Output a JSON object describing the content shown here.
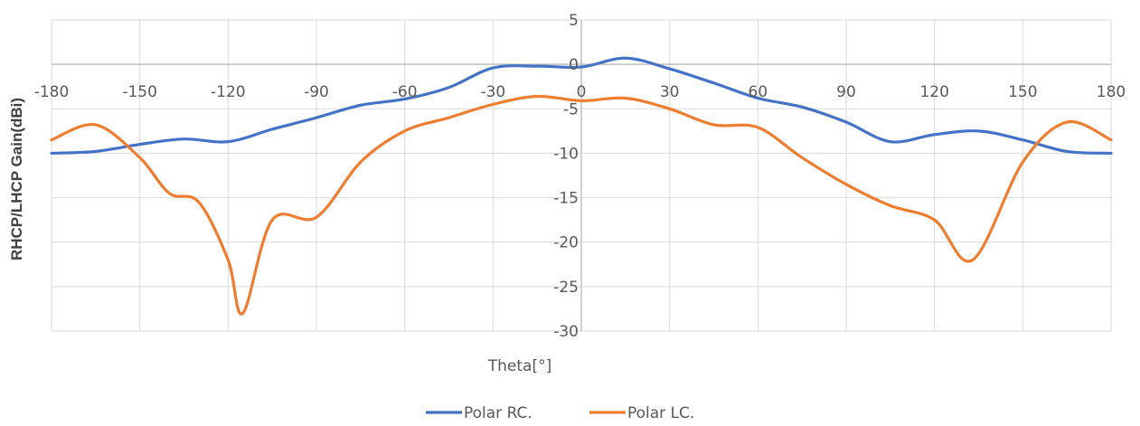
{
  "chart_data": {
    "type": "line",
    "xlabel": "Theta[°]",
    "ylabel": "RHCP/LHCP Gain(dBi)",
    "xlim": [
      -180,
      180
    ],
    "ylim": [
      -30,
      5
    ],
    "x_ticks": [
      -180,
      -150,
      -120,
      -90,
      -60,
      -30,
      0,
      30,
      60,
      90,
      120,
      150,
      180
    ],
    "y_ticks": [
      5,
      0,
      -5,
      -10,
      -15,
      -20,
      -25,
      -30
    ],
    "grid": true,
    "legend_position": "bottom",
    "series": [
      {
        "name": "Polar RC.",
        "color": "#4472C4",
        "x": [
          -180,
          -165,
          -150,
          -135,
          -120,
          -105,
          -90,
          -75,
          -60,
          -45,
          -30,
          -15,
          0,
          15,
          30,
          45,
          60,
          75,
          90,
          105,
          120,
          135,
          150,
          165,
          180
        ],
        "values": [
          -10,
          -9.8,
          -9,
          -8.4,
          -8.7,
          -7.3,
          -6,
          -4.6,
          -3.9,
          -2.6,
          -0.4,
          -0.2,
          -0.3,
          0.7,
          -0.5,
          -2.1,
          -3.8,
          -4.8,
          -6.5,
          -8.7,
          -7.9,
          -7.5,
          -8.5,
          -9.8,
          -10
        ]
      },
      {
        "name": "Polar LC.",
        "color": "#ED7D31",
        "x": [
          -180,
          -165,
          -150,
          -140,
          -130,
          -120,
          -115,
          -105,
          -90,
          -75,
          -60,
          -45,
          -30,
          -15,
          0,
          15,
          30,
          45,
          60,
          75,
          90,
          105,
          120,
          133,
          150,
          165,
          180
        ],
        "values": [
          -8.5,
          -6.8,
          -10.5,
          -14.5,
          -15.5,
          -22,
          -28,
          -17.5,
          -17.2,
          -11,
          -7.5,
          -6,
          -4.5,
          -3.6,
          -4.1,
          -3.8,
          -5,
          -6.8,
          -7.1,
          -10.5,
          -13.5,
          -15.9,
          -17.5,
          -22,
          -11,
          -6.5,
          -8.5
        ]
      }
    ]
  }
}
